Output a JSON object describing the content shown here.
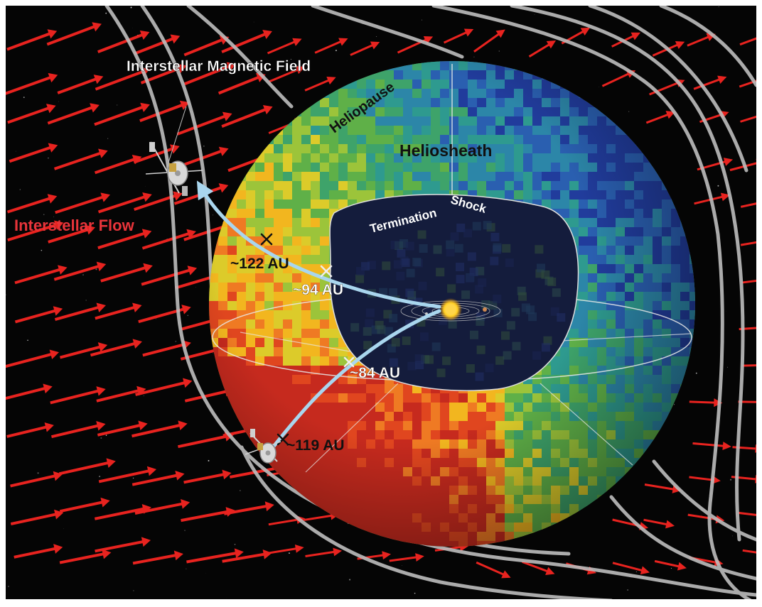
{
  "labels": {
    "magnetic_field": "Interstellar Magnetic Field",
    "heliopause": "Heliopause",
    "heliosheath": "Heliosheath",
    "termination": "Termination",
    "shock": "Shock",
    "interstellar_flow": "Interstellar Flow"
  },
  "distances": {
    "v1_heliopause": "~122 AU",
    "v1_termination": "~94 AU",
    "v2_termination": "~84 AU",
    "v2_heliopause": "~119 AU"
  },
  "colors": {
    "space": "#050505",
    "flow_arrow": "#e8231f",
    "field_line": "#bdbdbd",
    "trajectory": "#a9d6ee",
    "label_white": "#ffffff",
    "label_flow": "#e8343a"
  }
}
